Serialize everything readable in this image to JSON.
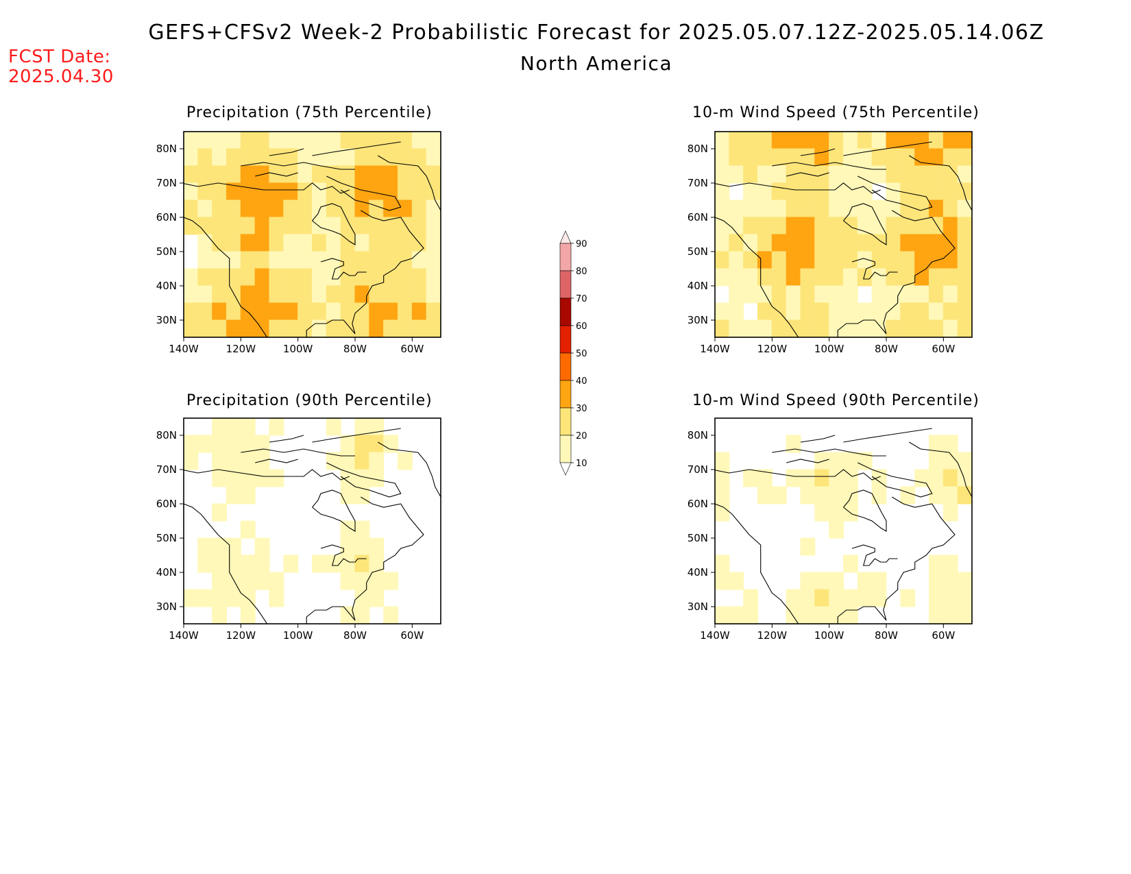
{
  "title": "GEFS+CFSv2 Week-2 Probabilistic Forecast for 2025.05.07.12Z-2025.05.14.06Z",
  "subtitle": "North America",
  "fcst_date": {
    "label": "FCST Date:",
    "value": "2025.04.30"
  },
  "colorbar": {
    "levels": [
      "10",
      "20",
      "30",
      "40",
      "50",
      "60",
      "70",
      "80",
      "90"
    ],
    "colors": [
      "#fff8b8",
      "#fde57a",
      "#ffa512",
      "#ff6a00",
      "#e32000",
      "#a80800",
      "#de6565",
      "#f2a6a6",
      "#fde8e8"
    ]
  },
  "panels": [
    {
      "id": "precip75",
      "title": "Precipitation (75th Percentile)"
    },
    {
      "id": "wind75",
      "title": "10-m Wind Speed (75th Percentile)"
    },
    {
      "id": "precip90",
      "title": "Precipitation (90th Percentile)"
    },
    {
      "id": "wind90",
      "title": "10-m Wind Speed (90th Percentile)"
    }
  ],
  "axes": {
    "lat_ticks": [
      "80N",
      "70N",
      "60N",
      "50N",
      "40N",
      "30N"
    ],
    "lon_ticks": [
      "140W",
      "120W",
      "100W",
      "80W",
      "60W"
    ]
  }
}
